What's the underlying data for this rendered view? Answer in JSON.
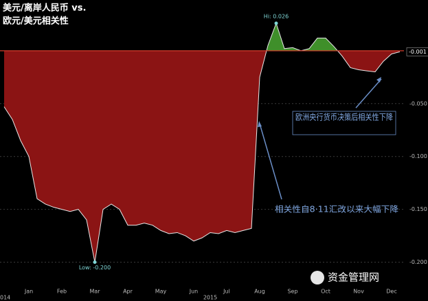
{
  "chart_data": {
    "type": "area",
    "title": [
      "美元/离岸人民币 vs.",
      "欧元/美元相关性"
    ],
    "categories": [
      "",
      null,
      null,
      "Jan",
      null,
      null,
      null,
      "Feb",
      null,
      null,
      null,
      "Mar",
      null,
      null,
      null,
      "Apr",
      null,
      null,
      null,
      "May",
      null,
      null,
      null,
      "Jun",
      null,
      null,
      null,
      "Jul",
      null,
      null,
      null,
      "Aug",
      null,
      null,
      null,
      "Sep",
      null,
      null,
      null,
      "Oct",
      null,
      null,
      null,
      "Nov",
      null,
      null,
      null,
      "Dec",
      null
    ],
    "series": [
      {
        "color": "#8b1414",
        "color_above": "#3f8f2a",
        "values": [
          -0.053,
          -0.065,
          -0.085,
          -0.1,
          -0.14,
          -0.145,
          -0.148,
          -0.15,
          -0.152,
          -0.15,
          -0.16,
          -0.2,
          -0.15,
          -0.145,
          -0.15,
          -0.165,
          -0.165,
          -0.163,
          -0.165,
          -0.17,
          -0.173,
          -0.172,
          -0.175,
          -0.18,
          -0.177,
          -0.172,
          -0.173,
          -0.17,
          -0.172,
          -0.17,
          -0.168,
          -0.025,
          0.005,
          0.026,
          0.002,
          0.003,
          0.0,
          0.002,
          0.012,
          0.012,
          0.004,
          -0.005,
          -0.016,
          -0.018,
          -0.019,
          -0.02,
          -0.01,
          -0.003,
          -0.001
        ]
      }
    ],
    "ylim": [
      -0.225,
      0.048
    ],
    "yticks": [
      {
        "value": -0.05,
        "label": "-0.050"
      },
      {
        "value": -0.1,
        "label": "-0.100"
      },
      {
        "value": -0.15,
        "label": "-0.150"
      },
      {
        "value": -0.2,
        "label": "-0.200"
      }
    ],
    "grid": true,
    "hi_label": "Hi: 0.026",
    "low_label": "Low: -0.200",
    "last_label": "-0.001",
    "year_left": "014",
    "year": "2015",
    "annotations": [
      "欧洲央行货币决策后相关性下降",
      "相关性自8·11汇改以来大幅下降"
    ],
    "watermark": "资金管理网"
  }
}
